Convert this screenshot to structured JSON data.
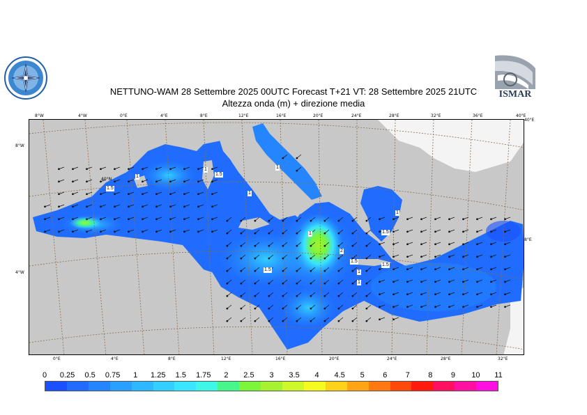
{
  "title_line1": "NETTUNO-WAM  28 Settembre 2025 00UTC Forecast T+21 VT: 28 Settembre 2025 21UTC",
  "title_line2": "Altezza onda (m) + direzione media",
  "logo_right_text": "ISMAR",
  "top_ticks": [
    "8°W",
    "4°W",
    "0°E",
    "4°E",
    "8°E",
    "12°E",
    "16°E",
    "20°E",
    "24°E",
    "28°E",
    "32°E",
    "36°E",
    "40°E"
  ],
  "bottom_ticks": [
    "0°E",
    "4°E",
    "8°E",
    "12°E",
    "16°E",
    "20°E",
    "24°E",
    "28°E",
    "32°E"
  ],
  "left_ticks": [
    "8°W",
    "4°W"
  ],
  "right_ticks": [
    "40°E",
    "8°E"
  ],
  "inner_tick": "40°N",
  "contour_labels": [
    "1",
    "1.5",
    "1",
    "1.5",
    "1",
    "1",
    "1",
    "1.5",
    "1",
    "1.5",
    "2",
    "1.5",
    "1",
    "1.5",
    "1"
  ],
  "legend": {
    "labels": [
      "0",
      "0.25",
      "0.5",
      "0.75",
      "1",
      "1.25",
      "1.5",
      "1.75",
      "2",
      "2.5",
      "3",
      "3.5",
      "4",
      "4.5",
      "5",
      "6",
      "7",
      "8",
      "9",
      "10",
      "11"
    ],
    "colors": [
      "#1a50ff",
      "#1f6cff",
      "#2485ff",
      "#29a0ff",
      "#2eb8ff",
      "#33cfff",
      "#39e5ff",
      "#3ff7e8",
      "#48f78c",
      "#7cf53b",
      "#a6f230",
      "#cff82a",
      "#f5fa20",
      "#ffd21a",
      "#ffa515",
      "#ff7810",
      "#ff4a0c",
      "#ff1a10",
      "#ff1060",
      "#ff10a0",
      "#ff10e0"
    ]
  },
  "colors": {
    "land": "#c8c8c8",
    "sea_base": "#1f6cff",
    "graticule": "#8b6d4a"
  }
}
